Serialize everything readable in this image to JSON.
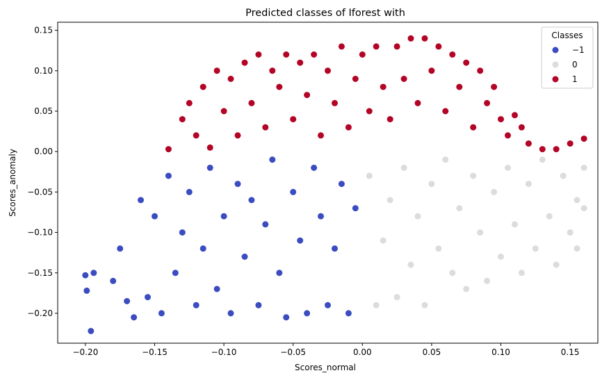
{
  "chart_data": {
    "type": "scatter",
    "title": "Predicted classes of Iforest with",
    "xlabel": "Scores_normal",
    "ylabel": "Scores_anomaly",
    "xlim": [
      -0.22,
      0.17
    ],
    "ylim": [
      -0.237,
      0.16
    ],
    "xticks": [
      -0.2,
      -0.15,
      -0.1,
      -0.05,
      0.0,
      0.05,
      0.1,
      0.15
    ],
    "xtick_labels": [
      "−0.20",
      "−0.15",
      "−0.10",
      "−0.05",
      "0.00",
      "0.05",
      "0.10",
      "0.15"
    ],
    "yticks": [
      -0.2,
      -0.15,
      -0.1,
      -0.05,
      0.0,
      0.05,
      0.1,
      0.15
    ],
    "ytick_labels": [
      "−0.20",
      "−0.15",
      "−0.10",
      "−0.05",
      "0.00",
      "0.05",
      "0.10",
      "0.15"
    ],
    "grid": false,
    "legend": {
      "title": "Classes",
      "position": "top-right"
    },
    "series": [
      {
        "name": "−1",
        "color": "#3b4cc0",
        "points": [
          [
            -0.2,
            -0.153
          ],
          [
            -0.196,
            -0.222
          ],
          [
            -0.199,
            -0.172
          ],
          [
            -0.194,
            -0.15
          ],
          [
            -0.18,
            -0.16
          ],
          [
            -0.175,
            -0.12
          ],
          [
            -0.17,
            -0.185
          ],
          [
            -0.165,
            -0.205
          ],
          [
            -0.16,
            -0.06
          ],
          [
            -0.155,
            -0.18
          ],
          [
            -0.15,
            -0.08
          ],
          [
            -0.145,
            -0.2
          ],
          [
            -0.14,
            -0.03
          ],
          [
            -0.135,
            -0.15
          ],
          [
            -0.13,
            -0.1
          ],
          [
            -0.125,
            -0.05
          ],
          [
            -0.12,
            -0.19
          ],
          [
            -0.115,
            -0.12
          ],
          [
            -0.11,
            -0.02
          ],
          [
            -0.105,
            -0.17
          ],
          [
            -0.1,
            -0.08
          ],
          [
            -0.095,
            -0.2
          ],
          [
            -0.09,
            -0.04
          ],
          [
            -0.085,
            -0.13
          ],
          [
            -0.08,
            -0.06
          ],
          [
            -0.075,
            -0.19
          ],
          [
            -0.07,
            -0.09
          ],
          [
            -0.065,
            -0.01
          ],
          [
            -0.06,
            -0.15
          ],
          [
            -0.055,
            -0.205
          ],
          [
            -0.05,
            -0.05
          ],
          [
            -0.045,
            -0.11
          ],
          [
            -0.04,
            -0.2
          ],
          [
            -0.035,
            -0.02
          ],
          [
            -0.03,
            -0.08
          ],
          [
            -0.025,
            -0.19
          ],
          [
            -0.02,
            -0.12
          ],
          [
            -0.015,
            -0.04
          ],
          [
            -0.01,
            -0.2
          ],
          [
            -0.005,
            -0.07
          ]
        ]
      },
      {
        "name": "0",
        "color": "#dcdcdc",
        "points": [
          [
            0.005,
            -0.03
          ],
          [
            0.01,
            -0.19
          ],
          [
            0.015,
            -0.11
          ],
          [
            0.02,
            -0.06
          ],
          [
            0.025,
            -0.18
          ],
          [
            0.03,
            -0.02
          ],
          [
            0.035,
            -0.14
          ],
          [
            0.04,
            -0.08
          ],
          [
            0.045,
            -0.19
          ],
          [
            0.05,
            -0.04
          ],
          [
            0.055,
            -0.12
          ],
          [
            0.06,
            -0.01
          ],
          [
            0.065,
            -0.15
          ],
          [
            0.07,
            -0.07
          ],
          [
            0.075,
            -0.17
          ],
          [
            0.08,
            -0.03
          ],
          [
            0.085,
            -0.1
          ],
          [
            0.09,
            -0.16
          ],
          [
            0.095,
            -0.05
          ],
          [
            0.1,
            -0.13
          ],
          [
            0.105,
            -0.02
          ],
          [
            0.11,
            -0.09
          ],
          [
            0.115,
            -0.15
          ],
          [
            0.12,
            -0.04
          ],
          [
            0.125,
            -0.12
          ],
          [
            0.13,
            -0.01
          ],
          [
            0.135,
            -0.08
          ],
          [
            0.14,
            -0.14
          ],
          [
            0.145,
            -0.03
          ],
          [
            0.15,
            -0.1
          ],
          [
            0.155,
            -0.06
          ],
          [
            0.16,
            -0.02
          ],
          [
            0.16,
            -0.07
          ],
          [
            0.155,
            -0.12
          ]
        ]
      },
      {
        "name": "1",
        "color": "#b40426",
        "points": [
          [
            -0.14,
            0.003
          ],
          [
            -0.13,
            0.04
          ],
          [
            -0.125,
            0.06
          ],
          [
            -0.12,
            0.02
          ],
          [
            -0.115,
            0.08
          ],
          [
            -0.11,
            0.005
          ],
          [
            -0.105,
            0.1
          ],
          [
            -0.1,
            0.05
          ],
          [
            -0.095,
            0.09
          ],
          [
            -0.09,
            0.02
          ],
          [
            -0.085,
            0.11
          ],
          [
            -0.08,
            0.06
          ],
          [
            -0.075,
            0.12
          ],
          [
            -0.07,
            0.03
          ],
          [
            -0.065,
            0.1
          ],
          [
            -0.06,
            0.08
          ],
          [
            -0.055,
            0.12
          ],
          [
            -0.05,
            0.04
          ],
          [
            -0.045,
            0.11
          ],
          [
            -0.04,
            0.07
          ],
          [
            -0.035,
            0.12
          ],
          [
            -0.03,
            0.02
          ],
          [
            -0.025,
            0.1
          ],
          [
            -0.02,
            0.06
          ],
          [
            -0.015,
            0.13
          ],
          [
            -0.01,
            0.03
          ],
          [
            -0.005,
            0.09
          ],
          [
            0.0,
            0.12
          ],
          [
            0.005,
            0.05
          ],
          [
            0.01,
            0.13
          ],
          [
            0.015,
            0.08
          ],
          [
            0.02,
            0.04
          ],
          [
            0.025,
            0.13
          ],
          [
            0.03,
            0.09
          ],
          [
            0.035,
            0.14
          ],
          [
            0.04,
            0.06
          ],
          [
            0.045,
            0.14
          ],
          [
            0.05,
            0.1
          ],
          [
            0.055,
            0.13
          ],
          [
            0.06,
            0.05
          ],
          [
            0.065,
            0.12
          ],
          [
            0.07,
            0.08
          ],
          [
            0.075,
            0.11
          ],
          [
            0.08,
            0.03
          ],
          [
            0.085,
            0.1
          ],
          [
            0.09,
            0.06
          ],
          [
            0.095,
            0.08
          ],
          [
            0.1,
            0.04
          ],
          [
            0.105,
            0.02
          ],
          [
            0.11,
            0.045
          ],
          [
            0.115,
            0.03
          ],
          [
            0.12,
            0.01
          ],
          [
            0.13,
            0.003
          ],
          [
            0.14,
            0.003
          ],
          [
            0.15,
            0.01
          ],
          [
            0.16,
            0.016
          ]
        ]
      }
    ]
  }
}
